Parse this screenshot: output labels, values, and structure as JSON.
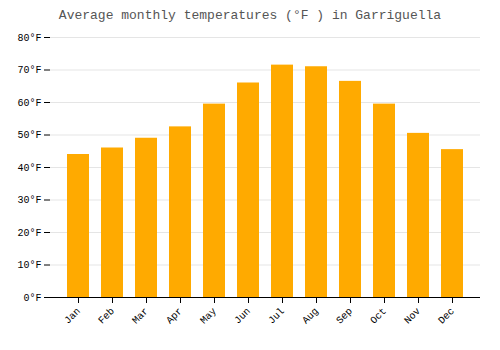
{
  "chart_data": {
    "type": "bar",
    "title": "Average monthly temperatures (°F ) in Garriguella",
    "categories": [
      "Jan",
      "Feb",
      "Mar",
      "Apr",
      "May",
      "Jun",
      "Jul",
      "Aug",
      "Sep",
      "Oct",
      "Nov",
      "Dec"
    ],
    "values": [
      44,
      46,
      49,
      52.5,
      59.5,
      66,
      71.5,
      71,
      66.5,
      59.5,
      50.5,
      45.5
    ],
    "color": "#FFAA00",
    "ylim": [
      0,
      80
    ],
    "yticks": [
      {
        "value": 0,
        "label": "0°F"
      },
      {
        "value": 10,
        "label": "10°F"
      },
      {
        "value": 20,
        "label": "20°F"
      },
      {
        "value": 30,
        "label": "30°F"
      },
      {
        "value": 40,
        "label": "40°F"
      },
      {
        "value": 50,
        "label": "50°F"
      },
      {
        "value": 60,
        "label": "60°F"
      },
      {
        "value": 70,
        "label": "70°F"
      },
      {
        "value": 80,
        "label": "80°F"
      }
    ],
    "grid": true
  }
}
